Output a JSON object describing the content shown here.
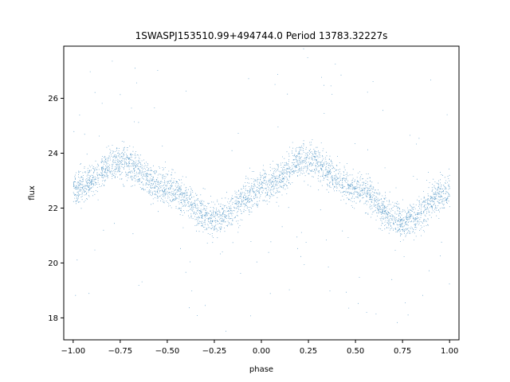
{
  "chart_data": {
    "type": "scatter",
    "title": "1SWASPJ153510.99+494744.0 Period 13783.32227s",
    "xlabel": "phase",
    "ylabel": "flux",
    "xlim": [
      -1.05,
      1.05
    ],
    "ylim": [
      17.2,
      27.9
    ],
    "x_ticks": [
      -1.0,
      -0.75,
      -0.5,
      -0.25,
      0.0,
      0.25,
      0.5,
      0.75,
      1.0
    ],
    "x_tick_labels": [
      "−1.00",
      "−0.75",
      "−0.50",
      "−0.25",
      "0.00",
      "0.25",
      "0.50",
      "0.75",
      "1.00"
    ],
    "y_ticks": [
      18,
      20,
      22,
      24,
      26
    ],
    "y_tick_labels": [
      "18",
      "20",
      "22",
      "24",
      "26"
    ],
    "grid": false,
    "legend": "none",
    "marker_color": "#1f77b4",
    "series": [
      {
        "x_range": [
          -1.0,
          1.0
        ],
        "point_count": 24000,
        "trend_x": [
          -1.0,
          -0.75,
          -0.5,
          -0.25,
          0.0,
          0.25,
          0.5,
          0.75,
          1.0
        ],
        "trend_y": [
          22.7,
          23.7,
          22.7,
          21.6,
          22.7,
          23.8,
          22.7,
          21.5,
          22.6
        ],
        "band_half_width": 0.5
      }
    ]
  }
}
